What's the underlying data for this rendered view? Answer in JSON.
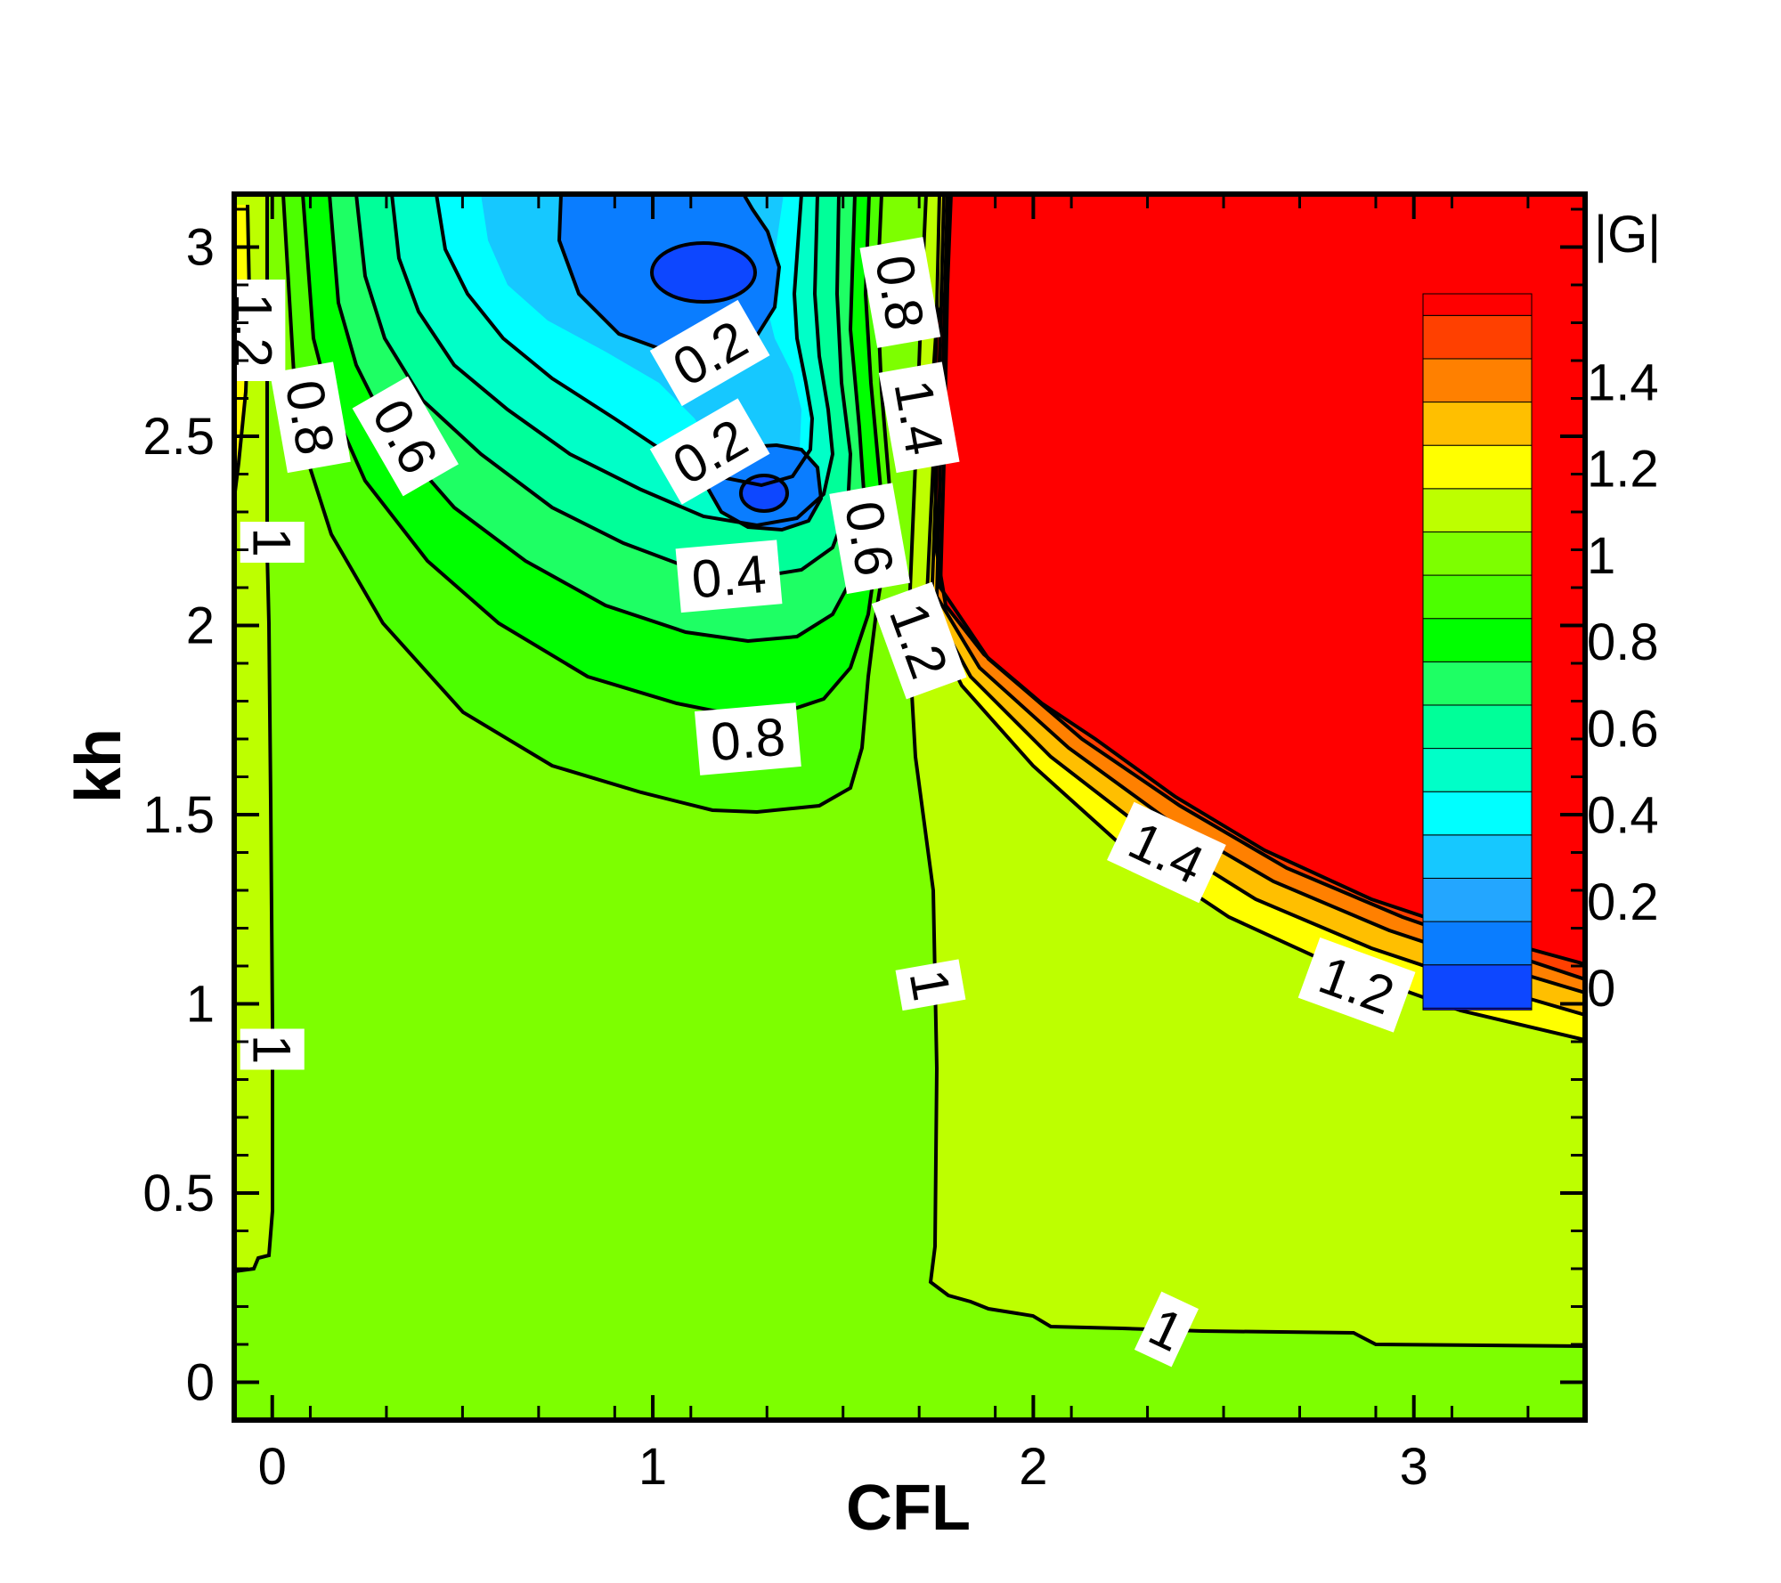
{
  "chart_data": {
    "type": "heatmap",
    "subtype": "filled-contour",
    "xlabel": "CFL",
    "ylabel": "kh",
    "xlim": [
      -0.1,
      3.45
    ],
    "ylim": [
      -0.1,
      3.14
    ],
    "xticks": [
      0,
      1,
      2,
      3
    ],
    "xtick_labels": [
      "0",
      "1",
      "2",
      "3"
    ],
    "yticks": [
      0,
      0.5,
      1,
      1.5,
      2,
      2.5,
      3
    ],
    "ytick_labels": [
      "0",
      "0.5",
      "1",
      "1.5",
      "2",
      "2.5",
      "3"
    ],
    "grid": false,
    "legend": {
      "title": "|G|",
      "placement": "inside-top-right",
      "levels": [
        0,
        0.1,
        0.2,
        0.3,
        0.4,
        0.5,
        0.6,
        0.7,
        0.8,
        0.9,
        1.0,
        1.1,
        1.2,
        1.3,
        1.4,
        1.5,
        1.6
      ],
      "tick_values": [
        0,
        0.2,
        0.4,
        0.6,
        0.8,
        1,
        1.2,
        1.4
      ],
      "tick_labels": [
        "0",
        "0.2",
        "0.4",
        "0.6",
        "0.8",
        "1",
        "1.2",
        "1.4"
      ],
      "colors": [
        "#1a1aff",
        "#0d47ff",
        "#0a7dff",
        "#23a6ff",
        "#16c8ff",
        "#00ffff",
        "#00ffc8",
        "#00ff99",
        "#1eff64",
        "#00ff00",
        "#4cff00",
        "#7dff00",
        "#bdff00",
        "#ffff00",
        "#ffbf00",
        "#ff8000",
        "#ff4000",
        "#ff0000"
      ]
    },
    "region_values": [
      {
        "region": "left edge strip",
        "value": 1.05
      },
      {
        "region": "main lower-left region",
        "value": 0.95
      },
      {
        "region": "lower-right region",
        "value": 1.05
      },
      {
        "region": "upper-right unstable region",
        "value": 1.6
      },
      {
        "region": "upper minimum (CFL 1.15, kh 2.93)",
        "value": 0.05
      },
      {
        "region": "lower minimum (CFL 1.3, kh 2.35)",
        "value": 0.05
      }
    ],
    "contour_labels": [
      {
        "text": "1",
        "x": 0.0,
        "y": 2.22
      },
      {
        "text": "1",
        "x": 0.0,
        "y": 0.88
      },
      {
        "text": "1.2",
        "x": -0.05,
        "y": 2.78
      },
      {
        "text": "0.8",
        "x": 0.1,
        "y": 2.55
      },
      {
        "text": "0.6",
        "x": 0.35,
        "y": 2.5
      },
      {
        "text": "0.2",
        "x": 1.15,
        "y": 2.72
      },
      {
        "text": "0.2",
        "x": 1.15,
        "y": 2.46
      },
      {
        "text": "0.4",
        "x": 1.2,
        "y": 2.13
      },
      {
        "text": "0.8",
        "x": 1.25,
        "y": 1.7
      },
      {
        "text": "0.8",
        "x": 1.65,
        "y": 2.88
      },
      {
        "text": "0.6",
        "x": 1.57,
        "y": 2.23
      },
      {
        "text": "1.4",
        "x": 1.7,
        "y": 2.55
      },
      {
        "text": "1.2",
        "x": 1.7,
        "y": 1.96
      },
      {
        "text": "1",
        "x": 1.73,
        "y": 1.05
      },
      {
        "text": "1.4",
        "x": 2.35,
        "y": 1.4
      },
      {
        "text": "1.2",
        "x": 2.85,
        "y": 1.05
      },
      {
        "text": "1",
        "x": 2.35,
        "y": 0.14
      }
    ]
  }
}
